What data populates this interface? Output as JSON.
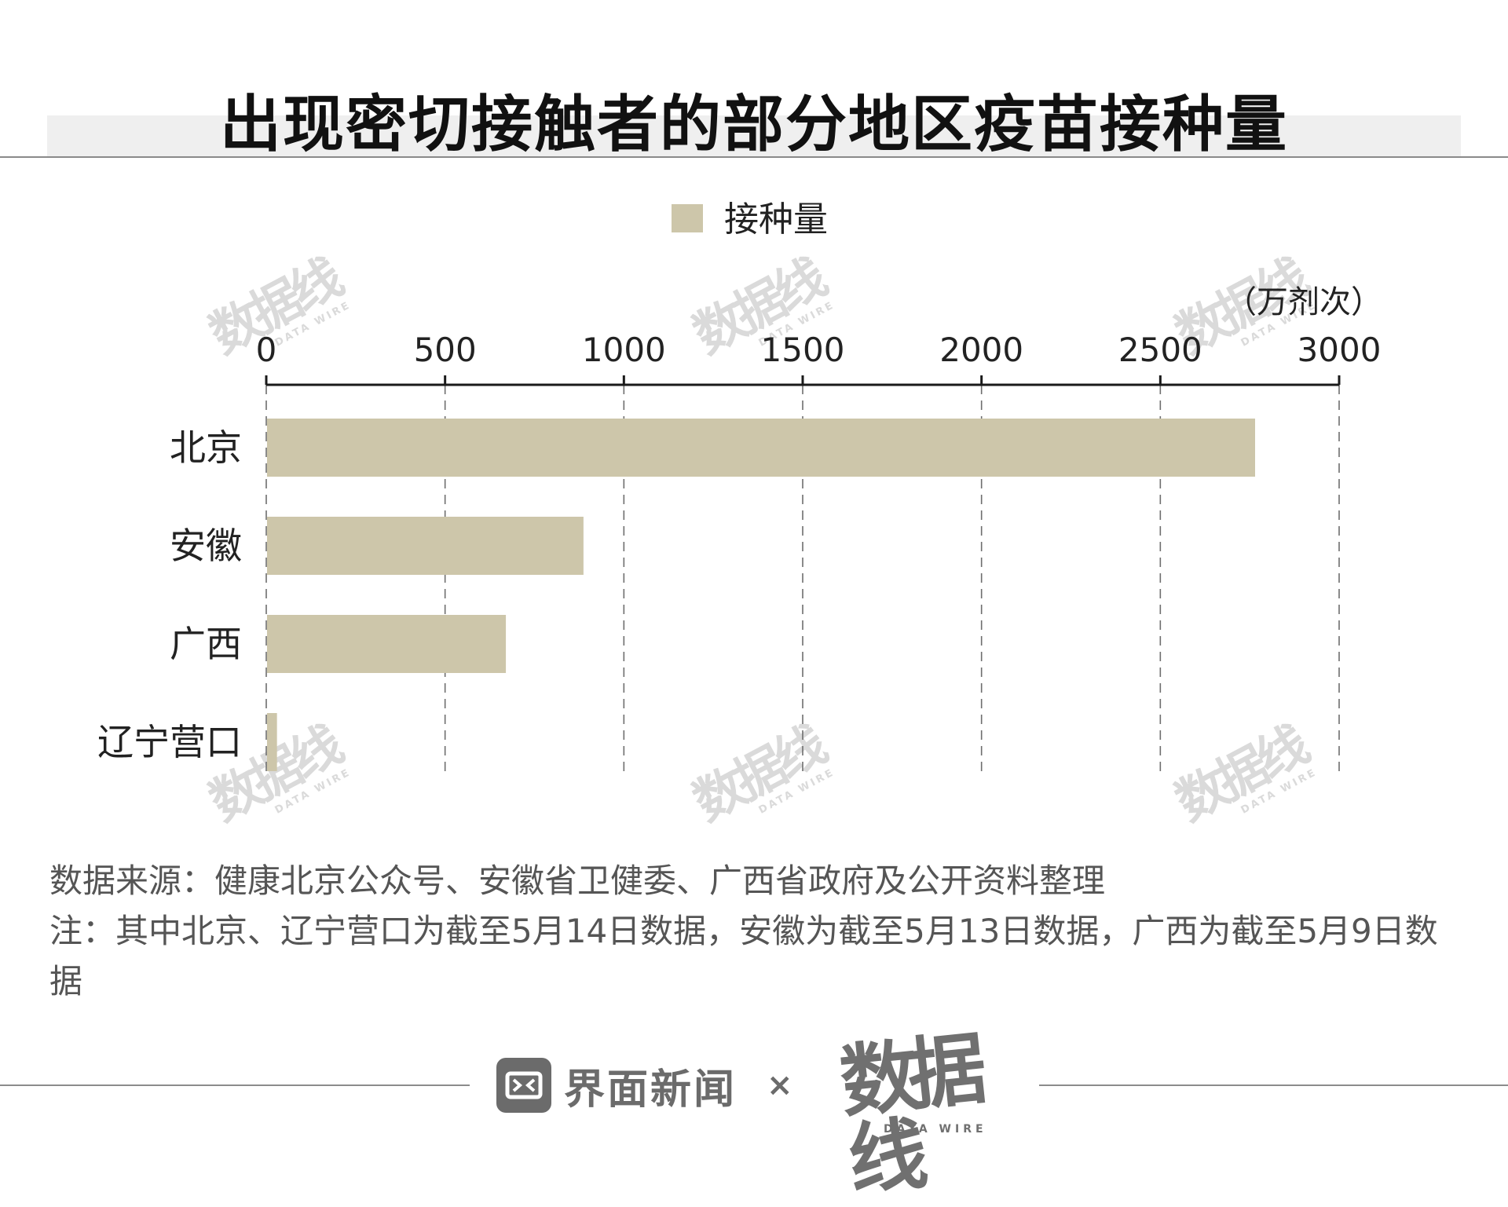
{
  "title": "出现密切接触者的部分地区疫苗接种量",
  "watermark": {
    "text": "数据线",
    "sub": "DATA WIRE"
  },
  "chart_data": {
    "type": "bar",
    "orientation": "horizontal",
    "categories": [
      "北京",
      "安徽",
      "广西",
      "辽宁营口"
    ],
    "series": [
      {
        "name": "接种量",
        "values": [
          2765,
          887,
          670,
          30
        ],
        "color": "#cdc6aa"
      }
    ],
    "unit": "（万剂次）",
    "xlim": [
      0,
      3000
    ],
    "xticks": [
      0,
      500,
      1000,
      1500,
      2000,
      2500,
      3000
    ],
    "grid": "vertical dashed",
    "legend_position": "top-center",
    "axis_position": "top"
  },
  "notes": {
    "source": "数据来源：健康北京公众号、安徽省卫健委、广西省政府及公开资料整理",
    "note": "注：其中北京、辽宁营口为截至5月14日数据，安徽为截至5月13日数据，广西为截至5月9日数据"
  },
  "footer": {
    "brand": "界面新闻",
    "separator": "×",
    "partner": "数据线",
    "partner_sub": "DATA WIRE"
  }
}
